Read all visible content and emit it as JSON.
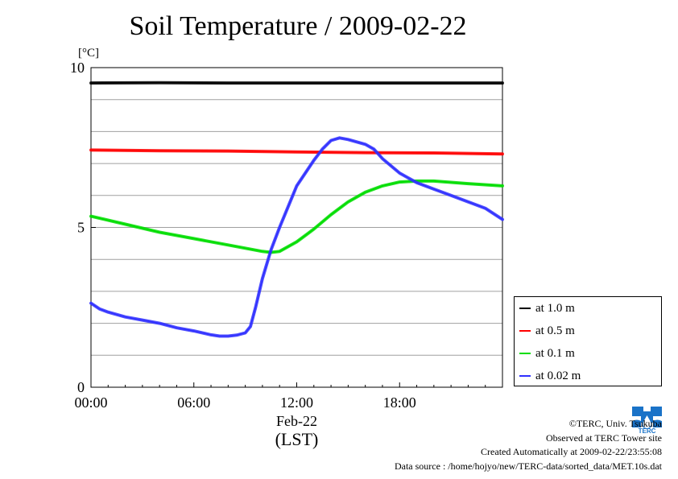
{
  "title": "Soil Temperature / 2009-02-22",
  "credits": {
    "copyright": "©TERC, Univ. Tsukuba",
    "observed": "Observed at TERC Tower site",
    "created": "Created Automatically at 2009-02-22/23:55:08",
    "source": "Data source : /home/hojyo/new/TERC-data/sorted_data/MET.10s.dat"
  },
  "logo_text": "TERC",
  "chart_data": {
    "type": "line",
    "title": "Soil Temperature / 2009-02-22",
    "ylabel": "[°C]",
    "xlabel": "Feb-22",
    "xlabel2": "(LST)",
    "xlim": [
      0,
      24
    ],
    "ylim": [
      0,
      10
    ],
    "x_ticks": [
      0,
      6,
      12,
      18
    ],
    "x_tick_labels": [
      "00:00",
      "06:00",
      "12:00",
      "18:00"
    ],
    "y_ticks": [
      0,
      5,
      10
    ],
    "y_tick_labels": [
      "0",
      "5",
      "10"
    ],
    "grid": true,
    "legend_position": "bottom-right, outside",
    "series": [
      {
        "name": "at 1.0 m",
        "color": "#000000",
        "x": [
          0,
          4,
          8,
          12,
          16,
          20,
          24
        ],
        "values": [
          9.52,
          9.53,
          9.52,
          9.52,
          9.52,
          9.52,
          9.52
        ]
      },
      {
        "name": "at 0.5 m",
        "color": "#ff0000",
        "x": [
          0,
          4,
          8,
          12,
          16,
          20,
          24
        ],
        "values": [
          7.42,
          7.4,
          7.39,
          7.36,
          7.34,
          7.33,
          7.3
        ]
      },
      {
        "name": "at 0.1 m",
        "color": "#00dd00",
        "x": [
          0,
          2,
          4,
          6,
          8,
          10,
          10.5,
          11,
          12,
          13,
          14,
          15,
          16,
          17,
          18,
          19,
          20,
          22,
          24
        ],
        "values": [
          5.35,
          5.1,
          4.85,
          4.65,
          4.45,
          4.25,
          4.22,
          4.25,
          4.55,
          4.95,
          5.4,
          5.8,
          6.1,
          6.3,
          6.42,
          6.45,
          6.45,
          6.37,
          6.3
        ]
      },
      {
        "name": "at 0.02 m",
        "color": "#3030ff",
        "x": [
          0,
          0.5,
          1,
          2,
          3,
          4,
          5,
          6,
          7,
          7.5,
          8,
          8.5,
          9,
          9.3,
          9.6,
          10,
          10.5,
          11,
          12,
          13,
          13.5,
          14,
          14.5,
          15,
          16,
          16.5,
          17,
          18,
          19,
          20,
          21,
          22,
          23,
          24
        ],
        "values": [
          2.63,
          2.45,
          2.35,
          2.2,
          2.1,
          2.0,
          1.86,
          1.76,
          1.64,
          1.6,
          1.6,
          1.63,
          1.7,
          1.9,
          2.5,
          3.4,
          4.3,
          5.0,
          6.3,
          7.1,
          7.45,
          7.72,
          7.8,
          7.75,
          7.6,
          7.45,
          7.15,
          6.7,
          6.4,
          6.2,
          6.0,
          5.8,
          5.6,
          5.25
        ]
      }
    ]
  }
}
